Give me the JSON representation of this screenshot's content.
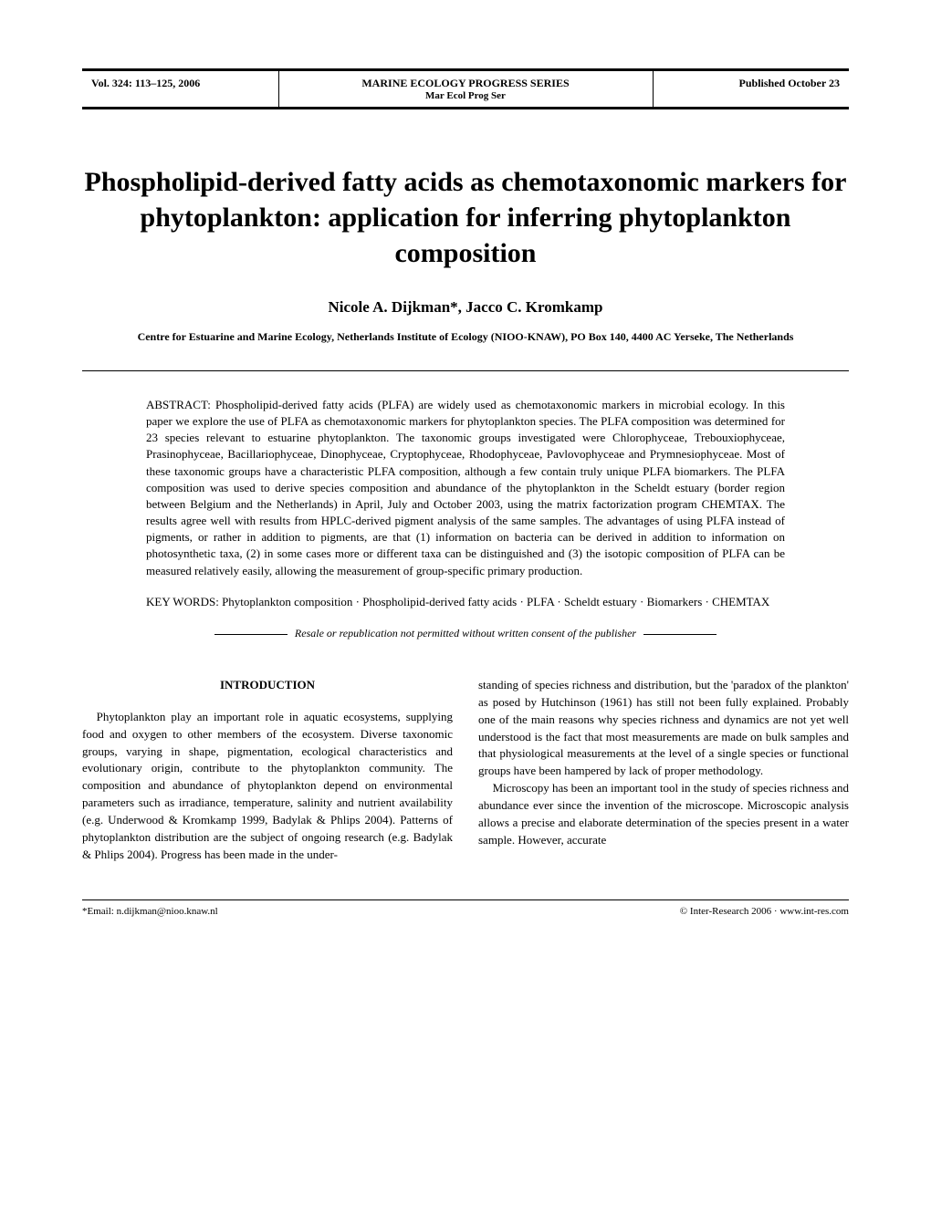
{
  "header": {
    "volume": "Vol. 324: 113–125, 2006",
    "series_full": "MARINE ECOLOGY PROGRESS SERIES",
    "series_short": "Mar Ecol Prog Ser",
    "pub_date": "Published October 23"
  },
  "title": "Phospholipid-derived fatty acids as chemotaxonomic markers for phytoplankton: application for inferring phytoplankton composition",
  "authors": "Nicole A. Dijkman*, Jacco C. Kromkamp",
  "affiliation": "Centre for Estuarine and Marine Ecology, Netherlands Institute of Ecology (NIOO-KNAW), PO Box 140, 4400 AC Yerseke, The Netherlands",
  "abstract_label": "ABSTRACT: ",
  "abstract": "Phospholipid-derived fatty acids (PLFA) are widely used as chemotaxonomic markers in microbial ecology. In this paper we explore the use of PLFA as chemotaxonomic markers for phytoplankton species. The PLFA composition was determined for 23 species relevant to estuarine phytoplankton. The taxonomic groups investigated were Chlorophyceae, Trebouxiophyceae, Prasinophyceae, Bacillariophyceae, Dinophyceae, Cryptophyceae, Rhodophyceae, Pavlovophyceae and Prymnesiophyceae. Most of these taxonomic groups have a characteristic PLFA composition, although a few contain truly unique PLFA biomarkers. The PLFA composition was used to derive species composition and abundance of the phytoplankton in the Scheldt estuary (border region between Belgium and the Netherlands) in April, July and October 2003, using the matrix factorization program CHEMTAX. The results agree well with results from HPLC-derived pigment analysis of the same samples. The advantages of using PLFA instead of pigments, or rather in addition to pigments, are that (1) information on bacteria can be derived in addition to information on photosynthetic taxa, (2) in some cases more or different taxa can be distinguished and (3) the isotopic composition of PLFA can be measured relatively easily, allowing the measurement of group-specific primary production.",
  "keywords_label": "KEY WORDS:  ",
  "keywords": "Phytoplankton composition · Phospholipid-derived fatty acids · PLFA · Scheldt estuary · Biomarkers · CHEMTAX",
  "resale": "Resale or republication not permitted without written consent of the publisher",
  "intro_heading": "INTRODUCTION",
  "intro_col1": "Phytoplankton play an important role in aquatic ecosystems, supplying food and oxygen to other members of the ecosystem. Diverse taxonomic groups, varying in shape, pigmentation, ecological characteristics and evolutionary origin, contribute to the phytoplankton community. The composition and abundance of phytoplankton depend on environmental parameters such as irradiance, temperature, salinity and nutrient availability (e.g. Underwood & Kromkamp 1999, Badylak & Phlips 2004). Patterns of phytoplankton distribution are the subject of ongoing research (e.g. Badylak & Phlips 2004). Progress has been made in the under-",
  "intro_col2_p1": "standing of species richness and distribution, but the 'paradox of the plankton' as posed by Hutchinson (1961) has still not been fully explained. Probably one of the main reasons why species richness and dynamics are not yet well understood is the fact that most measurements are made on bulk samples and that physiological measurements at the level of a single species or functional groups have been hampered by lack of proper methodology.",
  "intro_col2_p2": "Microscopy has been an important tool in the study of species richness and abundance ever since the invention of the microscope. Microscopic analysis allows a precise and elaborate determination of the species present in a water sample. However, accurate",
  "footer": {
    "email": "*Email: n.dijkman@nioo.knaw.nl",
    "copyright": "© Inter-Research 2006 · www.int-res.com"
  }
}
